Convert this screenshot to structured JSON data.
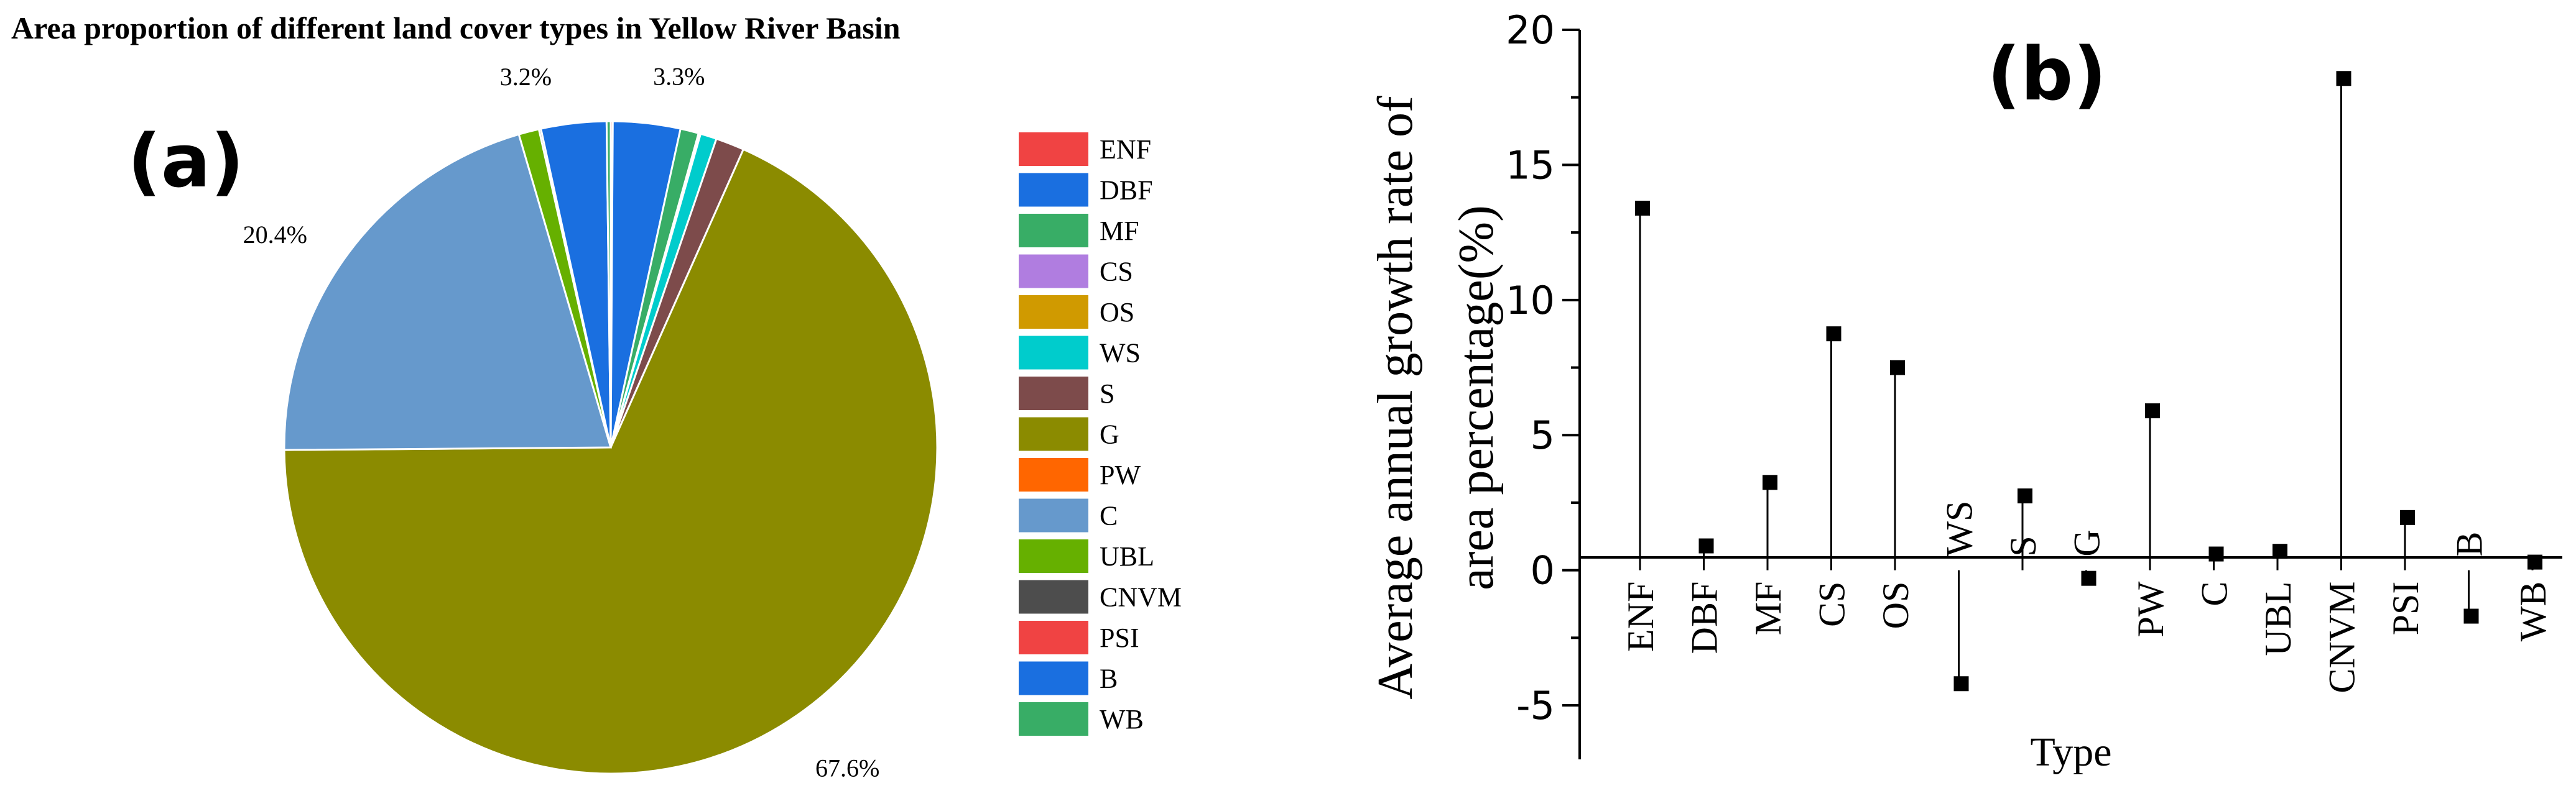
{
  "chart_data": [
    {
      "type": "pie",
      "panel_label": "(a)",
      "title": "Area  proportion of different land cover types in Yellow River Basin",
      "legend_position": "right",
      "slices": [
        {
          "label": "ENF",
          "value": 0.1,
          "color": "#f04343"
        },
        {
          "label": "DBF",
          "value": 3.3,
          "color": "#1a6fe0"
        },
        {
          "label": "MF",
          "value": 0.9,
          "color": "#38ad66"
        },
        {
          "label": "CS",
          "value": 0.05,
          "color": "#b07de0"
        },
        {
          "label": "OS",
          "value": 0.05,
          "color": "#d09a00"
        },
        {
          "label": "WS",
          "value": 0.8,
          "color": "#00cccc"
        },
        {
          "label": "S",
          "value": 1.4,
          "color": "#7d4b4b"
        },
        {
          "label": "G",
          "value": 67.6,
          "color": "#8b8b00"
        },
        {
          "label": "PW",
          "value": 0.0,
          "color": "#ff6600"
        },
        {
          "label": "C",
          "value": 20.4,
          "color": "#6699cc"
        },
        {
          "label": "UBL",
          "value": 1.0,
          "color": "#66b000"
        },
        {
          "label": "CNVM",
          "value": 0.1,
          "color": "#4d4d4d"
        },
        {
          "label": "PSI",
          "value": 0.0,
          "color": "#f04343"
        },
        {
          "label": "B",
          "value": 3.2,
          "color": "#1a6fe0"
        },
        {
          "label": "WB",
          "value": 0.2,
          "color": "#38ad66"
        }
      ],
      "data_labels": [
        {
          "text": "3.2%",
          "for": "B"
        },
        {
          "text": "3.3%",
          "for": "DBF"
        },
        {
          "text": "20.4%",
          "for": "C"
        },
        {
          "text": "67.6%",
          "for": "G"
        }
      ]
    },
    {
      "type": "stem",
      "panel_label": "(b)",
      "xlabel": "Type",
      "ylabel_line1": "Average  annual  growth rate of",
      "ylabel_line2": "area percentage(%)",
      "ylim": [
        -7,
        20
      ],
      "yticks": [
        -5,
        0,
        5,
        10,
        15,
        20
      ],
      "categories": [
        "ENF",
        "DBF",
        "MF",
        "CS",
        "OS",
        "WS",
        "S",
        "G",
        "PW",
        "C",
        "UBL",
        "CNVM",
        "PSI",
        "B",
        "WB"
      ],
      "values": [
        13.4,
        0.9,
        3.25,
        8.75,
        7.5,
        -4.2,
        2.75,
        -0.3,
        5.9,
        0.6,
        0.7,
        18.2,
        1.95,
        -1.7,
        0.3
      ],
      "label_side": [
        "below",
        "below",
        "below",
        "below",
        "below",
        "above",
        "above",
        "above",
        "below",
        "below",
        "below",
        "below",
        "below",
        "above",
        "below"
      ]
    }
  ]
}
